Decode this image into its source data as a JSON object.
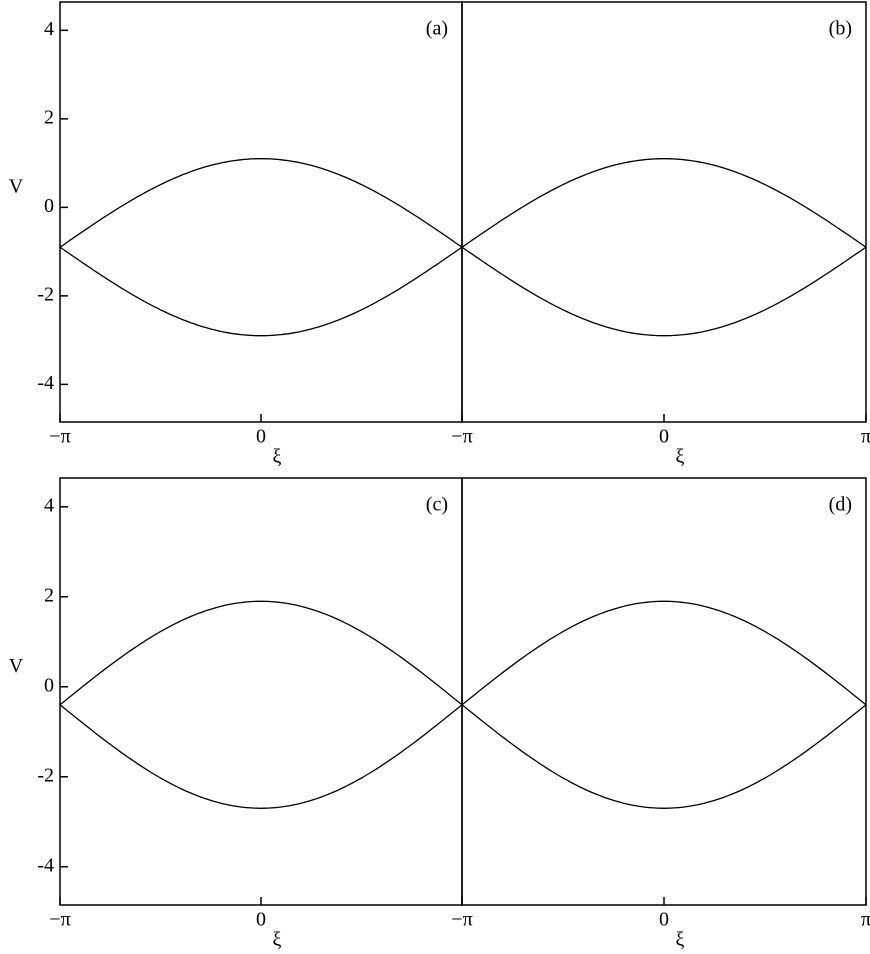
{
  "chart_data": [
    {
      "type": "phase",
      "panel_label": "(a)",
      "ylabel": "V",
      "xlabel": "ξ",
      "xlim": [
        -3.14159,
        3.14159
      ],
      "xticks": [
        {
          "value": -3.14159,
          "label": "−π"
        },
        0
      ],
      "ylim": [
        -4.85,
        4.64
      ],
      "yticks": [
        -4,
        -2,
        0,
        2,
        4
      ],
      "separatrix": {
        "center": -0.9,
        "half_width": 2,
        "color": "#000000"
      }
    },
    {
      "type": "phase",
      "panel_label": "(b)",
      "xlabel": "ξ",
      "xlim": [
        -3.14159,
        3.14159
      ],
      "xticks": [
        {
          "value": -3.14159,
          "label": "−π"
        },
        0,
        {
          "value": 3.14159,
          "label": "π"
        }
      ],
      "ylim": [
        -4.85,
        4.64
      ],
      "separatrix": {
        "center": -0.9,
        "half_width": 2,
        "color": "#000000"
      }
    },
    {
      "type": "phase",
      "panel_label": "(c)",
      "ylabel": "V",
      "xlabel": "ξ",
      "xlim": [
        -3.14159,
        3.14159
      ],
      "xticks": [
        {
          "value": -3.14159,
          "label": "−π"
        },
        0
      ],
      "ylim": [
        -4.85,
        4.64
      ],
      "yticks": [
        -4,
        -2,
        0,
        2,
        4
      ],
      "separatrix": {
        "center": -0.4,
        "half_width": 2.3,
        "color": "#000000"
      }
    },
    {
      "type": "phase",
      "panel_label": "(d)",
      "xlabel": "ξ",
      "xlim": [
        -3.14159,
        3.14159
      ],
      "xticks": [
        {
          "value": -3.14159,
          "label": "−π"
        },
        0,
        {
          "value": 3.14159,
          "label": "π"
        }
      ],
      "ylim": [
        -4.85,
        4.64
      ],
      "separatrix": {
        "center": -0.4,
        "half_width": 2.3,
        "color": "#000000"
      }
    }
  ]
}
